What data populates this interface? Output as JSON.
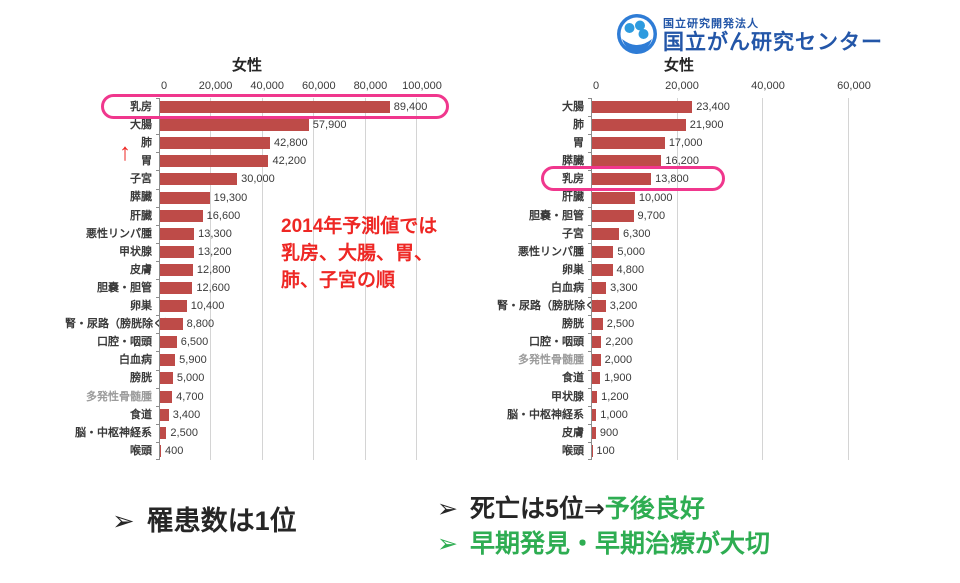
{
  "logo": {
    "small_text": "国立研究開発法人",
    "main_text": "国立がん研究センター"
  },
  "annotation": {
    "arrow": "↑",
    "lines": [
      "2014年予測値では",
      "乳房、大腸、胃、",
      "肺、子宮の順"
    ]
  },
  "bullets": {
    "marker": "➢",
    "left": "罹患数は1位",
    "right1_black": "死亡は5位⇒",
    "right1_green": "予後良好",
    "right2": "早期発見・早期治療が大切"
  },
  "colors": {
    "bar": "#be4b48",
    "highlight_pink": "#f0378d",
    "annotation_red": "#ee2724",
    "green": "#2ead52",
    "logo_blue": "#2356a8"
  },
  "chart_data": [
    {
      "type": "bar",
      "orientation": "horizontal",
      "title": "女性",
      "xlim": [
        0,
        100000
      ],
      "ticks": [
        0,
        20000,
        40000,
        60000,
        80000,
        100000
      ],
      "tick_labels": [
        "0",
        "20,000",
        "40,000",
        "60,000",
        "80,000",
        "100,000"
      ],
      "grid": true,
      "highlight_category": "乳房",
      "gray_categories": [
        "多発性骨髄腫"
      ],
      "categories": [
        "乳房",
        "大腸",
        "肺",
        "胃",
        "子宮",
        "膵臓",
        "肝臓",
        "悪性リンパ腫",
        "甲状腺",
        "皮膚",
        "胆嚢・胆管",
        "卵巣",
        "腎・尿路（膀胱除く）",
        "口腔・咽頭",
        "白血病",
        "膀胱",
        "多発性骨髄腫",
        "食道",
        "脳・中枢神経系",
        "喉頭"
      ],
      "values": [
        89400,
        57900,
        42800,
        42200,
        30000,
        19300,
        16600,
        13300,
        13200,
        12800,
        12600,
        10400,
        8800,
        6500,
        5900,
        5000,
        4700,
        3400,
        2500,
        400
      ],
      "value_labels": [
        "89,400",
        "57,900",
        "42,800",
        "42,200",
        "30,000",
        "19,300",
        "16,600",
        "13,300",
        "13,200",
        "12,800",
        "12,600",
        "10,400",
        "8,800",
        "6,500",
        "5,900",
        "5,000",
        "4,700",
        "3,400",
        "2,500",
        "400"
      ]
    },
    {
      "type": "bar",
      "orientation": "horizontal",
      "title": "女性",
      "xlim": [
        0,
        60000
      ],
      "ticks": [
        0,
        20000,
        40000,
        60000
      ],
      "tick_labels": [
        "0",
        "20,000",
        "40,000",
        "60,000"
      ],
      "grid": true,
      "highlight_category": "乳房",
      "gray_categories": [
        "多発性骨髄腫"
      ],
      "categories": [
        "大腸",
        "肺",
        "胃",
        "膵臓",
        "乳房",
        "肝臓",
        "胆嚢・胆管",
        "子宮",
        "悪性リンパ腫",
        "卵巣",
        "白血病",
        "腎・尿路（膀胱除く）",
        "膀胱",
        "口腔・咽頭",
        "多発性骨髄腫",
        "食道",
        "甲状腺",
        "脳・中枢神経系",
        "皮膚",
        "喉頭"
      ],
      "values": [
        23400,
        21900,
        17000,
        16200,
        13800,
        10000,
        9700,
        6300,
        5000,
        4800,
        3300,
        3200,
        2500,
        2200,
        2000,
        1900,
        1200,
        1000,
        900,
        100
      ],
      "value_labels": [
        "23,400",
        "21,900",
        "17,000",
        "16,200",
        "13,800",
        "10,000",
        "9,700",
        "6,300",
        "5,000",
        "4,800",
        "3,300",
        "3,200",
        "2,500",
        "2,200",
        "2,000",
        "1,900",
        "1,200",
        "1,000",
        "900",
        "100"
      ]
    }
  ]
}
